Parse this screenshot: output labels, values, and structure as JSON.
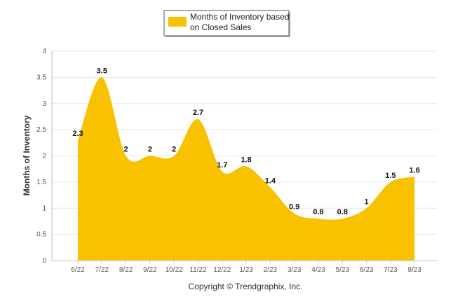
{
  "chart_data": {
    "type": "area",
    "categories": [
      "6/22",
      "7/22",
      "8/22",
      "9/22",
      "10/22",
      "11/22",
      "12/22",
      "1/23",
      "2/23",
      "3/23",
      "4/23",
      "5/23",
      "6/23",
      "7/23",
      "8/23"
    ],
    "series": [
      {
        "name": "Months of Inventory based on Closed Sales",
        "values": [
          2.3,
          3.5,
          2,
          2,
          2,
          2.7,
          1.7,
          1.8,
          1.4,
          0.9,
          0.8,
          0.8,
          1,
          1.5,
          1.6
        ],
        "labels": [
          "2.3",
          "3.5",
          "2",
          "2",
          "2",
          "2.7",
          "1.7",
          "1.8",
          "1.4",
          "0.9",
          "0.8",
          "0.8",
          "1",
          "1.5",
          "1.6"
        ]
      }
    ],
    "ylabel": "Months of Inventory",
    "xlabel": "",
    "ylim": [
      0,
      4
    ],
    "yticks": [
      "0",
      "0.5",
      "1",
      "1.5",
      "2",
      "2.5",
      "3",
      "3.5",
      "4"
    ],
    "grid": true,
    "legend_position": "top-center",
    "copyright": "Copyright © Trendgraphix, Inc.",
    "colors": {
      "fill": "#F8C200",
      "grid": "#E6E6E6",
      "axis": "#C0C0C0"
    }
  }
}
